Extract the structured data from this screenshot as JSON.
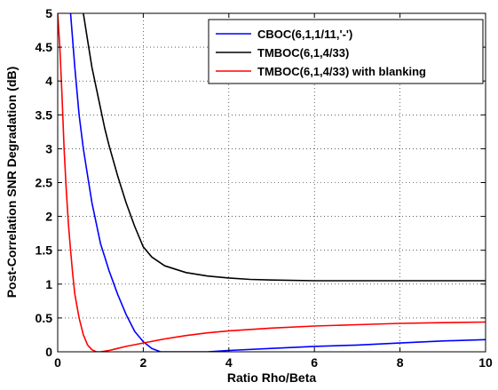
{
  "chart_data": {
    "type": "line",
    "title": "",
    "xlabel": "Ratio Rho/Beta",
    "ylabel": "Post-Correlation SNR Degradation (dB)",
    "xlim": [
      0,
      10
    ],
    "ylim": [
      0,
      5
    ],
    "xticks": [
      0,
      2,
      4,
      6,
      8,
      10
    ],
    "yticks": [
      0,
      0.5,
      1,
      1.5,
      2,
      2.5,
      3,
      3.5,
      4,
      4.5,
      5
    ],
    "ytick_labels": [
      "0",
      "0.5",
      "1",
      "1.5",
      "2",
      "2.5",
      "3",
      "3.5",
      "4",
      "4.5",
      "5"
    ],
    "xtick_labels": [
      "0",
      "2",
      "4",
      "6",
      "8",
      "10"
    ],
    "grid": true,
    "legend_position": "top-right",
    "series": [
      {
        "name": "CBOC(6,1,1/11,'-')",
        "color": "#0000ff",
        "x": [
          0.3,
          0.35,
          0.4,
          0.5,
          0.6,
          0.7,
          0.8,
          0.9,
          1.0,
          1.1,
          1.2,
          1.4,
          1.6,
          1.8,
          2.0,
          2.2,
          2.4,
          2.6,
          2.8,
          3.0,
          3.5,
          4.0,
          5.0,
          6.0,
          7.0,
          8.0,
          9.0,
          10.0
        ],
        "y": [
          5.0,
          4.6,
          4.2,
          3.5,
          3.0,
          2.6,
          2.2,
          1.9,
          1.6,
          1.4,
          1.2,
          0.85,
          0.55,
          0.3,
          0.15,
          0.05,
          0.0,
          0.0,
          0.0,
          0.0,
          0.0,
          0.02,
          0.05,
          0.08,
          0.1,
          0.13,
          0.16,
          0.18
        ]
      },
      {
        "name": "TMBOC(6,1,4/33)",
        "color": "#000000",
        "x": [
          0.6,
          0.7,
          0.8,
          0.9,
          1.0,
          1.1,
          1.2,
          1.4,
          1.6,
          1.8,
          2.0,
          2.2,
          2.5,
          3.0,
          3.5,
          4.0,
          4.5,
          5.0,
          6.0,
          7.0,
          8.0,
          9.0,
          10.0
        ],
        "y": [
          5.0,
          4.6,
          4.2,
          3.9,
          3.6,
          3.3,
          3.05,
          2.6,
          2.2,
          1.85,
          1.55,
          1.4,
          1.27,
          1.17,
          1.12,
          1.09,
          1.07,
          1.06,
          1.05,
          1.05,
          1.05,
          1.05,
          1.05
        ]
      },
      {
        "name": "TMBOC(6,1,4/33) with blanking",
        "color": "#ff0000",
        "x": [
          0.0,
          0.05,
          0.1,
          0.15,
          0.2,
          0.25,
          0.3,
          0.35,
          0.4,
          0.5,
          0.6,
          0.7,
          0.8,
          0.9,
          1.0,
          1.2,
          1.4,
          1.6,
          2.0,
          2.5,
          3.0,
          3.5,
          4.0,
          5.0,
          6.0,
          7.0,
          8.0,
          9.0,
          10.0
        ],
        "y": [
          5.0,
          4.5,
          3.8,
          3.0,
          2.4,
          1.9,
          1.5,
          1.15,
          0.85,
          0.5,
          0.25,
          0.1,
          0.03,
          0.0,
          0.0,
          0.02,
          0.05,
          0.08,
          0.13,
          0.19,
          0.24,
          0.28,
          0.31,
          0.35,
          0.38,
          0.4,
          0.42,
          0.43,
          0.44
        ]
      }
    ]
  }
}
